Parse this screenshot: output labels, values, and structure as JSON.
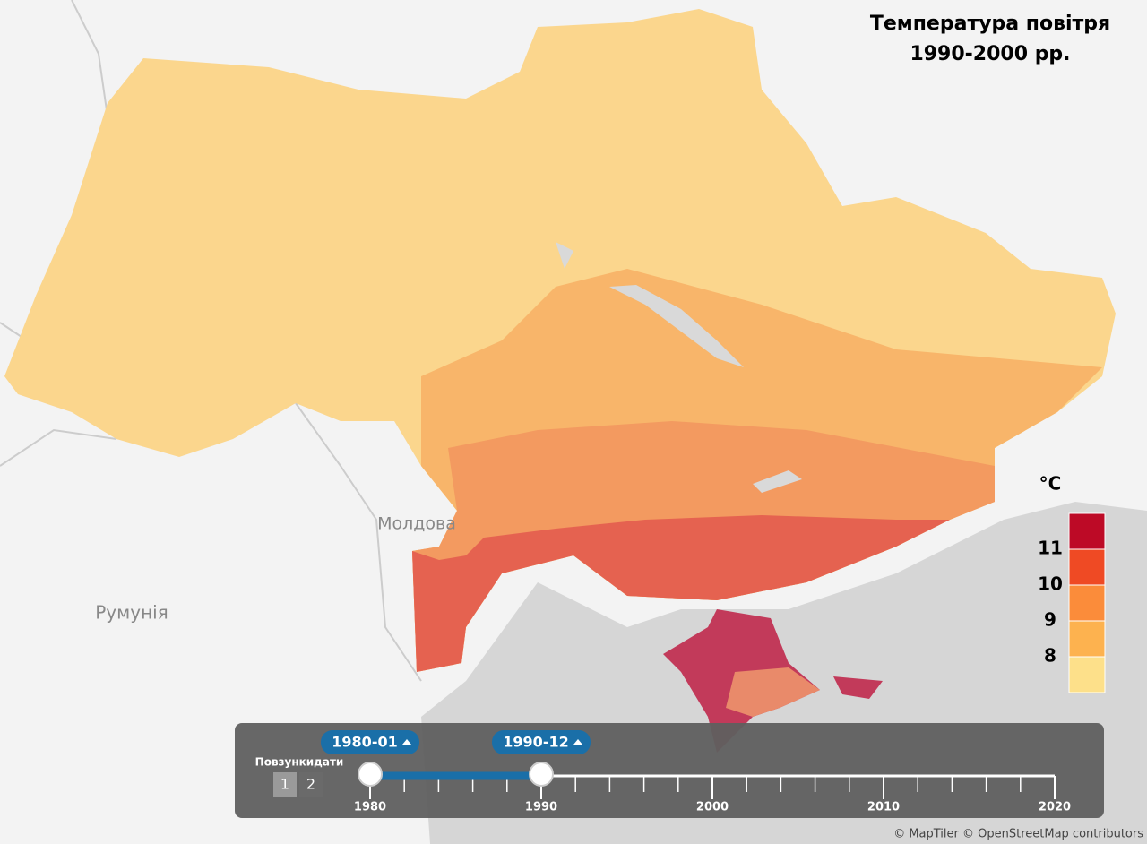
{
  "title": [
    "Температура повітря",
    "1990-2000 рр."
  ],
  "places": {
    "moldova": "Молдова",
    "romania": "Румунія"
  },
  "legend": {
    "unit": "°C",
    "colors": [
      "#fde08a",
      "#fdb24f",
      "#fb8c3a",
      "#ef4a24",
      "#bd0a26"
    ],
    "ticks": [
      8,
      9,
      10,
      11
    ]
  },
  "slider": {
    "caption": "Повзункидати",
    "buttons": [
      "1",
      "2"
    ],
    "xlim": [
      1980,
      2020
    ],
    "xticks": [
      1980,
      1990,
      2000,
      2010,
      2020
    ],
    "handles": [
      {
        "label": "1980-01",
        "value": 1980
      },
      {
        "label": "1990-12",
        "value": 1990
      }
    ],
    "color": "#1a6fa8"
  },
  "attribution": "© MapTiler © OpenStreetMap contributors"
}
